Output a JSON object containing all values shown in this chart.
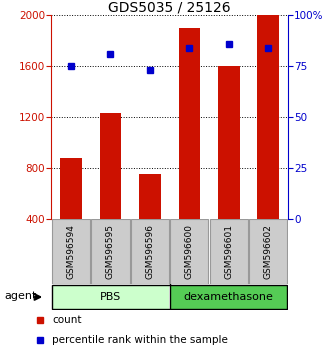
{
  "title": "GDS5035 / 25126",
  "samples": [
    "GSM596594",
    "GSM596595",
    "GSM596596",
    "GSM596600",
    "GSM596601",
    "GSM596602"
  ],
  "counts": [
    880,
    1230,
    750,
    1900,
    1600,
    2000
  ],
  "percentiles": [
    75,
    81,
    73,
    84,
    86,
    84
  ],
  "groups": [
    "PBS",
    "PBS",
    "PBS",
    "dexamethasone",
    "dexamethasone",
    "dexamethasone"
  ],
  "group_labels": [
    "PBS",
    "dexamethasone"
  ],
  "bar_color": "#cc1100",
  "dot_color": "#0000cc",
  "left_yticks": [
    400,
    800,
    1200,
    1600,
    2000
  ],
  "left_ylim": [
    400,
    2000
  ],
  "right_yticks": [
    0,
    25,
    50,
    75,
    100
  ],
  "right_ylim": [
    0,
    100
  ],
  "left_tick_color": "#cc1100",
  "right_tick_color": "#0000cc",
  "background_color": "#ffffff",
  "sample_box_color": "#cccccc",
  "pbs_color": "#ccffcc",
  "dex_color": "#55cc55",
  "agent_label": "agent",
  "legend_count_label": "count",
  "legend_pct_label": "percentile rank within the sample"
}
